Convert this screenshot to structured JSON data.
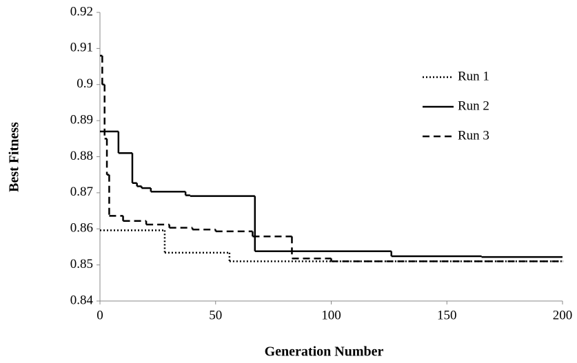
{
  "chart_data": {
    "type": "line",
    "drawstyle": "steps-post",
    "xlabel": "Generation Number",
    "ylabel": "Best Fitness",
    "xlim": [
      0,
      200
    ],
    "xticks": [
      0,
      50,
      100,
      150,
      200
    ],
    "ylim": [
      0.84,
      0.92
    ],
    "yticks": [
      0.84,
      0.85,
      0.86,
      0.87,
      0.88,
      0.89,
      0.9,
      0.91,
      0.92
    ],
    "grid": false,
    "legend": "upper right",
    "series": [
      {
        "name": "Run 1",
        "color": "#000000",
        "linestyle": "dotted",
        "x": [
          0,
          28,
          56,
          200
        ],
        "values": [
          0.8596,
          0.8534,
          0.851,
          0.851
        ]
      },
      {
        "name": "Run 2",
        "color": "#000000",
        "linestyle": "solid",
        "x": [
          0,
          8,
          14,
          16,
          18,
          22,
          37,
          39,
          67,
          126,
          165,
          200
        ],
        "values": [
          0.887,
          0.881,
          0.8727,
          0.8718,
          0.8713,
          0.8703,
          0.8693,
          0.8691,
          0.8538,
          0.8524,
          0.8522,
          0.8522
        ]
      },
      {
        "name": "Run 3",
        "color": "#000000",
        "linestyle": "dashed",
        "x": [
          0,
          1,
          2,
          3,
          4,
          10,
          20,
          30,
          40,
          50,
          66,
          83,
          100,
          200
        ],
        "values": [
          0.908,
          0.9,
          0.885,
          0.875,
          0.8636,
          0.8622,
          0.8612,
          0.8603,
          0.8598,
          0.8593,
          0.8579,
          0.8518,
          0.851,
          0.851
        ]
      }
    ]
  }
}
